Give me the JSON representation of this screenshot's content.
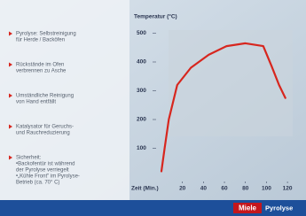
{
  "chart_data": {
    "type": "line",
    "title": "Temperatur (°C)",
    "xlabel": "Zeit (Min.)",
    "x": [
      0,
      3,
      7,
      15,
      28,
      45,
      62,
      80,
      97,
      105,
      112,
      118
    ],
    "values": [
      20,
      100,
      200,
      320,
      380,
      425,
      455,
      465,
      455,
      385,
      320,
      275
    ],
    "color": "#d7261e",
    "xlim": [
      0,
      125
    ],
    "xticks": [
      20,
      40,
      60,
      80,
      100,
      120
    ],
    "ylim": [
      0,
      540
    ],
    "yticks": [
      100,
      200,
      300,
      400,
      500
    ]
  },
  "bullets": [
    [
      "Pyrolyse: Selbstreinigung",
      "für Herde / Backöfen"
    ],
    [
      "Rückstände im Ofen",
      "verbrennen zu Asche"
    ],
    [
      "Umständliche Reinigung",
      "von Hand entfällt"
    ],
    [
      "Katalysator für Geruchs-",
      "und Rauchreduzierung"
    ],
    [
      "Sicherheit:",
      "•Backofentür ist während",
      "der Pyrolyse verriegelt",
      "•„Kühle Front\" im Pyrolyse-",
      "Betrieb (ca. 70° C)"
    ]
  ],
  "footer": {
    "brand": "Miele",
    "label": "Pyrolyse"
  }
}
